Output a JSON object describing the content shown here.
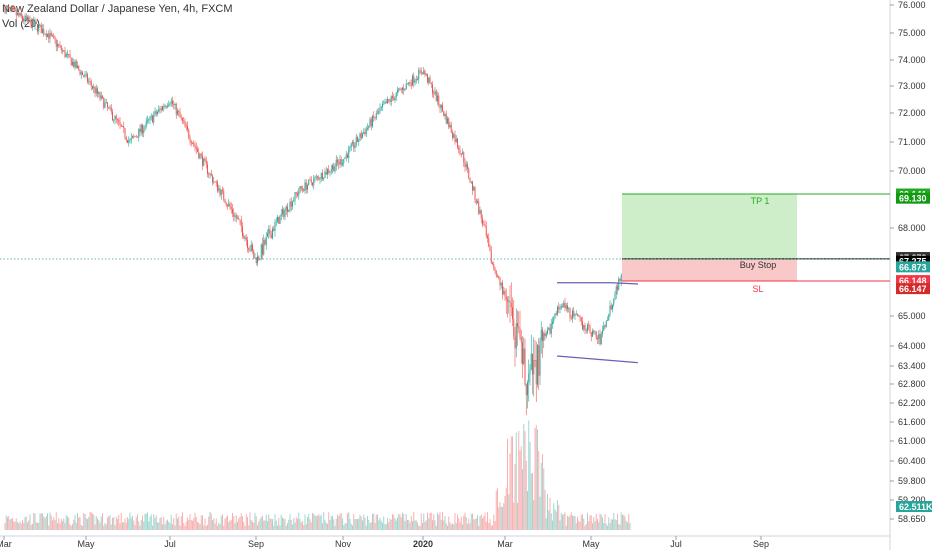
{
  "legend": {
    "symbol_line": "New Zealand Dollar / Japanese Yen, 4h, FXCM",
    "volume_line": "Vol (20)"
  },
  "chart_data": {
    "type": "candlestick",
    "title": "New Zealand Dollar / Japanese Yen, 4h, FXCM",
    "x_labels": [
      "Mar",
      "May",
      "Jul",
      "Sep",
      "Nov",
      "2020",
      "Mar",
      "May",
      "Jul",
      "Sep"
    ],
    "y_ticks": [
      76.0,
      75.0,
      74.0,
      73.0,
      72.0,
      71.0,
      70.0,
      68.0,
      65.0,
      64.0,
      63.4,
      62.8,
      62.2,
      61.6,
      61.0,
      60.4,
      59.8,
      59.2,
      58.65
    ],
    "y_tick_labels": [
      "76.000",
      "75.000",
      "74.000",
      "73.000",
      "72.000",
      "71.000",
      "70.000",
      "68.000",
      "65.000",
      "64.000",
      "63.400",
      "62.800",
      "62.200",
      "61.600",
      "61.000",
      "60.400",
      "59.800",
      "59.200",
      "58.650"
    ],
    "price_path": [
      {
        "x": "Mar",
        "y": 75.9
      },
      {
        "x": "Apr",
        "y": 75.0
      },
      {
        "x": "May",
        "y": 73.3
      },
      {
        "x": "Jun",
        "y": 71.0
      },
      {
        "x": "Jul",
        "y": 72.5
      },
      {
        "x": "Aug",
        "y": 69.6
      },
      {
        "x": "Sep",
        "y": 67.2
      },
      {
        "x": "Oct",
        "y": 69.3
      },
      {
        "x": "Nov",
        "y": 70.4
      },
      {
        "x": "Dec",
        "y": 72.3
      },
      {
        "x": "2020",
        "y": 73.6
      },
      {
        "x": "Feb",
        "y": 70.5
      },
      {
        "x": "Mar",
        "y": 62.8
      },
      {
        "x": "Apr",
        "y": 65.4
      },
      {
        "x": "May",
        "y": 64.2
      },
      {
        "x": "May end",
        "y": 67.1
      }
    ],
    "levels": {
      "tp": {
        "label": "TP 1",
        "value": 69.141,
        "value2": 69.13,
        "color": "#22ab22"
      },
      "entry": {
        "label": "Buy Stop",
        "value": 67.279,
        "color": "#000000"
      },
      "current": {
        "value": 67.275
      },
      "bid": {
        "value": 66.873,
        "color": "#26a69a"
      },
      "sl": {
        "label": "SL",
        "value": 66.148,
        "value2": 66.147,
        "color": "#f23645"
      }
    },
    "volume_last": "62.511K",
    "colors": {
      "up": "#26a69a",
      "down": "#ef5350",
      "channel": "#6b5fb5",
      "tp_fill": "#cdeec9",
      "sl_fill": "#f9c8c8"
    }
  }
}
